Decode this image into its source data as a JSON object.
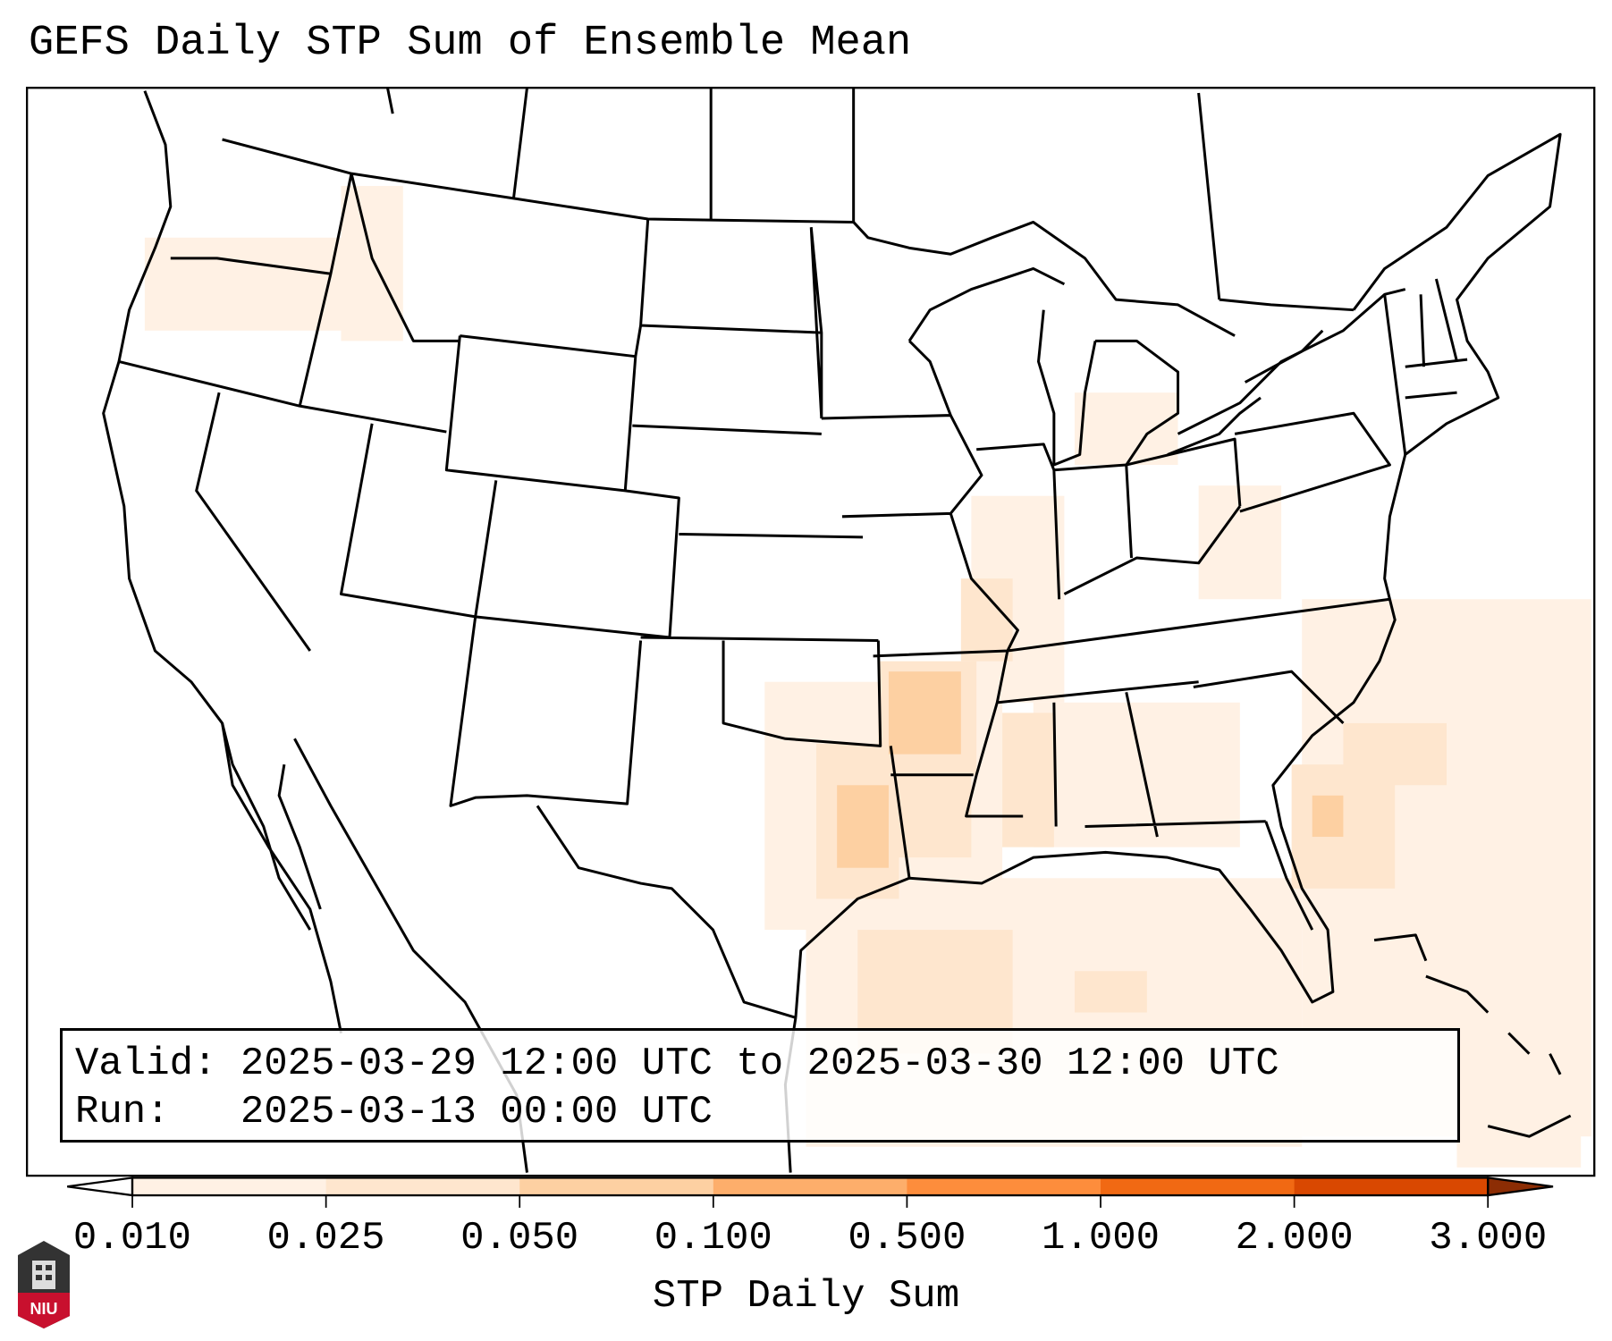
{
  "title": "GEFS Daily STP Sum of Ensemble Mean",
  "info": {
    "valid_label": "Valid:",
    "valid_value": "2025-03-29 12:00 UTC to 2025-03-30 12:00 UTC",
    "run_label": "Run:",
    "run_value": "2025-03-13 00:00 UTC"
  },
  "colorbar": {
    "label": "STP Daily Sum",
    "ticks": [
      "0.010",
      "0.025",
      "0.050",
      "0.100",
      "0.500",
      "1.000",
      "2.000",
      "3.000"
    ],
    "colors": [
      "#fff1e4",
      "#fee6ce",
      "#fdd0a2",
      "#fdae6b",
      "#fd8d3c",
      "#f16913",
      "#d94801"
    ],
    "under_color": "#ffffff",
    "over_color": "#8c2d04",
    "extend": "both"
  },
  "logo": {
    "text": "NIU",
    "color": "#c8102e"
  }
}
